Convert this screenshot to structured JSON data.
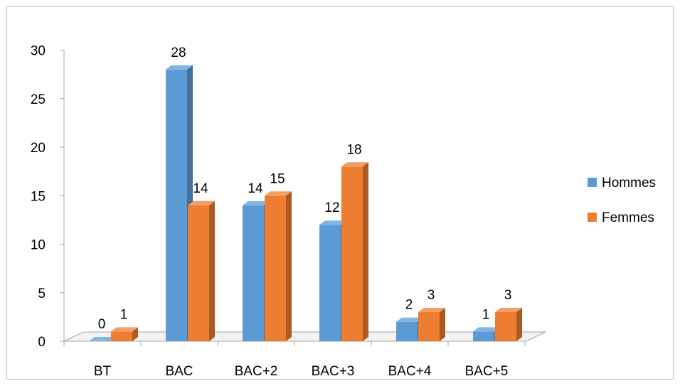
{
  "chart_data": {
    "type": "bar",
    "title": "",
    "xlabel": "",
    "ylabel": "",
    "categories": [
      "BT",
      "BAC",
      "BAC+2",
      "BAC+3",
      "BAC+4",
      "BAC+5"
    ],
    "series": [
      {
        "name": "Hommes",
        "values": [
          0,
          28,
          14,
          12,
          2,
          1
        ],
        "color": "#5b9bd5"
      },
      {
        "name": "Femmes",
        "values": [
          1,
          14,
          15,
          18,
          3,
          3
        ],
        "color": "#ed7d31"
      }
    ],
    "ylim": [
      0,
      30
    ],
    "yticks": [
      "0",
      "5",
      "10",
      "15",
      "20",
      "25",
      "30"
    ],
    "legend_position": "right",
    "grid": false,
    "style": "3d-column"
  }
}
